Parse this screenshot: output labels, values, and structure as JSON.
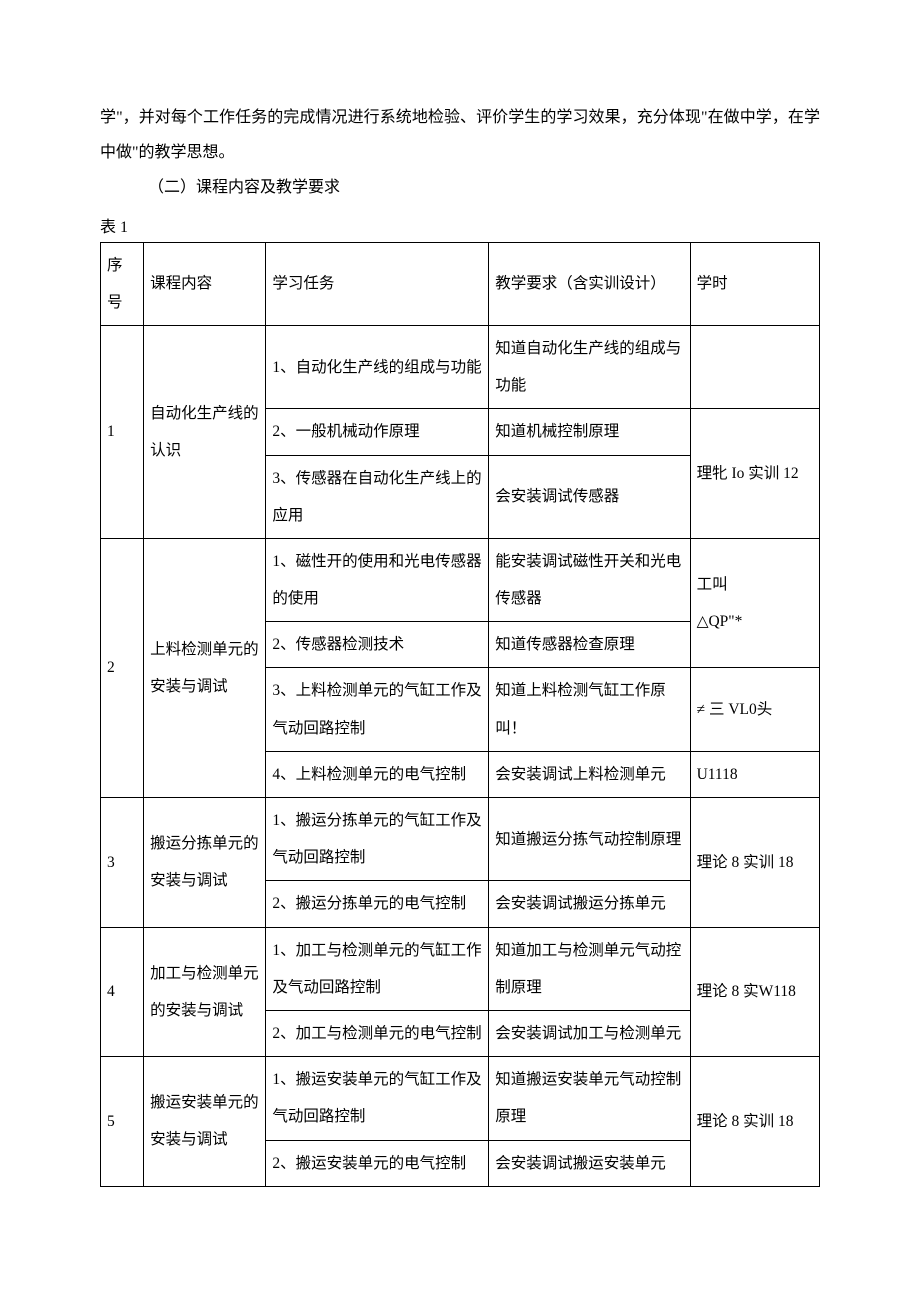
{
  "intro": {
    "line1": "学\"，并对每个工作任务的完成情况进行系统地检验、评价学生的学习效果，充分体现\"在做中学，在学中做\"的教学思想。",
    "heading": "（二）课程内容及教学要求",
    "table_label": "表 1"
  },
  "columns": {
    "seq": "序号",
    "course": "课程内容",
    "task": "学习任务",
    "req": "教学要求（含实训设计）",
    "hours": "学时"
  },
  "rows": {
    "r1": {
      "seq": "1",
      "course": "自动化生产线的认识",
      "tasks": [
        "1、自动化生产线的组成与功能",
        "2、一般机械动作原理",
        "3、传感器在自动化生产线上的应用"
      ],
      "reqs": [
        "知道自动化生产线的组成与功能",
        "知道机械控制原理",
        "会安装调试传感器"
      ],
      "hours_a": "",
      "hours_b": "理牝 Io 实训 12"
    },
    "r2": {
      "seq": "2",
      "course": "上料检测单元的安装与调试",
      "tasks": [
        "1、磁性开的使用和光电传感器的使用",
        "2、传感器检测技术",
        "3、上料检测单元的气缸工作及气动回路控制",
        "4、上料检测单元的电气控制"
      ],
      "reqs": [
        "能安装调试磁性开关和光电传感器",
        "知道传感器检查原理",
        "知道上料检测气缸工作原叫！",
        "会安装调试上料检测单元"
      ],
      "hours_a": "工叫\n△QP\"*",
      "hours_b": "≠ 三  VL0头",
      "hours_c": "U1118"
    },
    "r3": {
      "seq": "3",
      "course": "搬运分拣单元的安装与调试",
      "tasks": [
        "1、搬运分拣单元的气缸工作及气动回路控制",
        "2、搬运分拣单元的电气控制"
      ],
      "reqs": [
        "知道搬运分拣气动控制原理",
        "会安装调试搬运分拣单元"
      ],
      "hours": "理论 8 实训 18"
    },
    "r4": {
      "seq": "4",
      "course": "加工与检测单元的安装与调试",
      "tasks": [
        "1、加工与检测单元的气缸工作及气动回路控制",
        "2、加工与检测单元的电气控制"
      ],
      "reqs": [
        "知道加工与检测单元气动控制原理",
        "会安装调试加工与检测单元"
      ],
      "hours": "理论 8 实W118"
    },
    "r5": {
      "seq": "5",
      "course": "搬运安装单元的安装与调试",
      "tasks": [
        "1、搬运安装单元的气缸工作及气动回路控制",
        "2、搬运安装单元的电气控制"
      ],
      "reqs": [
        "知道搬运安装单元气动控制原理",
        "会安装调试搬运安装单元"
      ],
      "hours": "理论 8 实训 18"
    }
  }
}
